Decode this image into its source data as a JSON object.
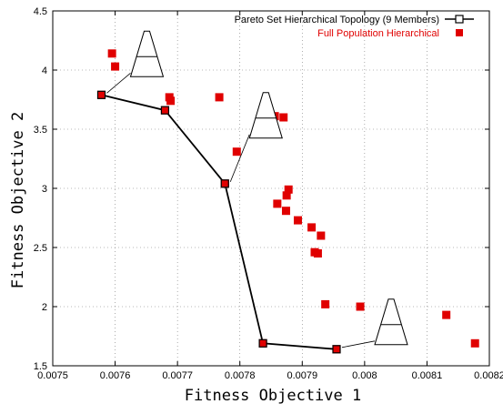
{
  "chart_data": {
    "type": "scatter",
    "xlabel": "Fitness Objective 1",
    "ylabel": "Fitness Objective 2",
    "xlim": [
      0.0075,
      0.0082
    ],
    "ylim": [
      1.5,
      4.5
    ],
    "x_ticks": [
      "0.0075",
      "0.0076",
      "0.0077",
      "0.0078",
      "0.0079",
      "0.008",
      "0.0081",
      "0.0082"
    ],
    "y_ticks": [
      "1.5",
      "2",
      "2.5",
      "3",
      "3.5",
      "4",
      "4.5"
    ],
    "grid": true,
    "legend_position": "top-right",
    "series": [
      {
        "name": "Pareto Set Hierarchical Topology (9 Members)",
        "style": "line-with-open-squares",
        "color": "#000000",
        "points": [
          [
            0.007578,
            3.79
          ],
          [
            0.00768,
            3.66
          ],
          [
            0.007776,
            3.04
          ],
          [
            0.007837,
            1.69
          ],
          [
            0.007955,
            1.64
          ]
        ]
      },
      {
        "name": "Full Population Hierarchical",
        "style": "filled-squares",
        "color": "#e00000",
        "points": [
          [
            0.007595,
            4.14
          ],
          [
            0.0076,
            4.03
          ],
          [
            0.007578,
            3.79
          ],
          [
            0.007687,
            3.77
          ],
          [
            0.007689,
            3.74
          ],
          [
            0.00768,
            3.66
          ],
          [
            0.007767,
            3.77
          ],
          [
            0.007795,
            3.31
          ],
          [
            0.007776,
            3.04
          ],
          [
            0.007842,
            3.69
          ],
          [
            0.007856,
            3.61
          ],
          [
            0.00787,
            3.6
          ],
          [
            0.007878,
            2.99
          ],
          [
            0.007875,
            2.94
          ],
          [
            0.00786,
            2.87
          ],
          [
            0.007874,
            2.81
          ],
          [
            0.007893,
            2.73
          ],
          [
            0.007915,
            2.67
          ],
          [
            0.00793,
            2.6
          ],
          [
            0.00792,
            2.46
          ],
          [
            0.007925,
            2.45
          ],
          [
            0.007937,
            2.02
          ],
          [
            0.007993,
            2.0
          ],
          [
            0.007837,
            1.69
          ],
          [
            0.007955,
            1.64
          ],
          [
            0.008131,
            1.93
          ],
          [
            0.008177,
            1.69
          ]
        ]
      }
    ],
    "annotations": [
      {
        "name": "topology-sketch-1",
        "anchor": [
          0.007578,
          3.79
        ]
      },
      {
        "name": "topology-sketch-2",
        "anchor": [
          0.007776,
          3.04
        ]
      },
      {
        "name": "topology-sketch-3",
        "anchor": [
          0.007955,
          1.64
        ]
      }
    ]
  }
}
